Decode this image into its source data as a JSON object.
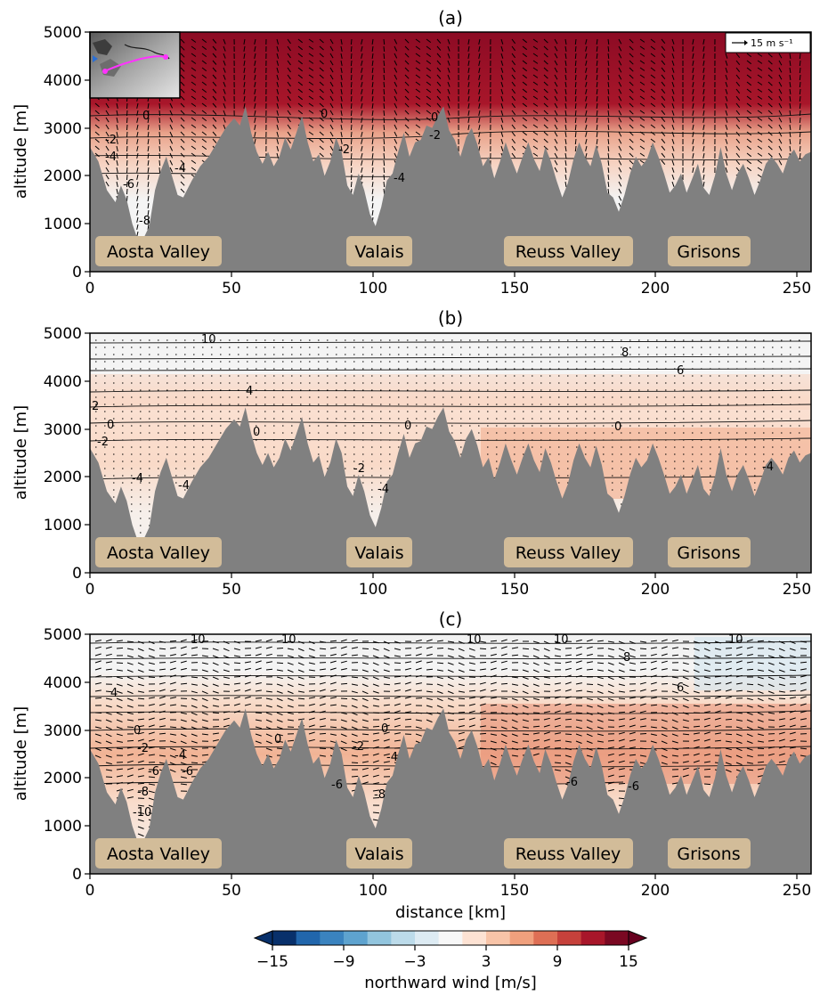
{
  "chart_data": [
    {
      "type": "heatmap",
      "panel_label": "(a)",
      "ylabel": "altitude [m]",
      "xlabel": "",
      "xlim": [
        0,
        255
      ],
      "ylim": [
        0,
        5000
      ],
      "xticks": [
        "0",
        "50",
        "100",
        "150",
        "200",
        "250"
      ],
      "yticks": [
        "0",
        "1000",
        "2000",
        "3000",
        "4000",
        "5000"
      ],
      "reference_arrow": "15 m s⁻¹",
      "region_labels": [
        "Aosta Valley",
        "Valais",
        "Reuss Valley",
        "Grisons"
      ],
      "contour_labels": [
        "0",
        "-2",
        "-4",
        "-6",
        "-8",
        "0",
        "-2",
        "-4",
        "-4",
        "0",
        "-2"
      ],
      "inset_map": true
    },
    {
      "type": "heatmap",
      "panel_label": "(b)",
      "ylabel": "altitude [m]",
      "xlabel": "",
      "xlim": [
        0,
        255
      ],
      "ylim": [
        0,
        5000
      ],
      "xticks": [
        "0",
        "50",
        "100",
        "150",
        "200",
        "250"
      ],
      "yticks": [
        "0",
        "1000",
        "2000",
        "3000",
        "4000",
        "5000"
      ],
      "region_labels": [
        "Aosta Valley",
        "Valais",
        "Reuss Valley",
        "Grisons"
      ],
      "contour_labels": [
        "10",
        "8",
        "6",
        "4",
        "2",
        "0",
        "-2",
        "-4",
        "-4",
        "0",
        "0",
        "-2",
        "-4",
        "0",
        "-4"
      ]
    },
    {
      "type": "heatmap",
      "panel_label": "(c)",
      "ylabel": "altitude [m]",
      "xlabel": "distance [km]",
      "xlim": [
        0,
        255
      ],
      "ylim": [
        0,
        5000
      ],
      "xticks": [
        "0",
        "50",
        "100",
        "150",
        "200",
        "250"
      ],
      "yticks": [
        "0",
        "1000",
        "2000",
        "3000",
        "4000",
        "5000"
      ],
      "region_labels": [
        "Aosta Valley",
        "Valais",
        "Reuss Valley",
        "Grisons"
      ],
      "contour_labels": [
        "10",
        "10",
        "10",
        "10",
        "10",
        "8",
        "6",
        "4",
        "0",
        "-2",
        "-4",
        "-6",
        "-6",
        "-8",
        "-10",
        "0",
        "-2",
        "-4",
        "-6",
        "-8",
        "0",
        "-6",
        "-6"
      ]
    }
  ],
  "terrain_profile_km_m": [
    [
      0,
      2600
    ],
    [
      3,
      2300
    ],
    [
      6,
      1700
    ],
    [
      9,
      1450
    ],
    [
      11,
      1800
    ],
    [
      13,
      1500
    ],
    [
      15,
      1000
    ],
    [
      17,
      650
    ],
    [
      19,
      700
    ],
    [
      21,
      950
    ],
    [
      23,
      1700
    ],
    [
      25,
      2100
    ],
    [
      27,
      2400
    ],
    [
      29,
      2000
    ],
    [
      31,
      1600
    ],
    [
      33,
      1550
    ],
    [
      36,
      1900
    ],
    [
      39,
      2200
    ],
    [
      42,
      2400
    ],
    [
      45,
      2700
    ],
    [
      48,
      3000
    ],
    [
      51,
      3200
    ],
    [
      53,
      3050
    ],
    [
      55,
      3450
    ],
    [
      57,
      2900
    ],
    [
      59,
      2500
    ],
    [
      61,
      2250
    ],
    [
      63,
      2500
    ],
    [
      65,
      2200
    ],
    [
      67,
      2400
    ],
    [
      69,
      2800
    ],
    [
      71,
      2550
    ],
    [
      73,
      2900
    ],
    [
      75,
      3250
    ],
    [
      77,
      2700
    ],
    [
      79,
      2300
    ],
    [
      81,
      2450
    ],
    [
      83,
      2000
    ],
    [
      85,
      2300
    ],
    [
      87,
      2800
    ],
    [
      89,
      2500
    ],
    [
      91,
      1800
    ],
    [
      93,
      1600
    ],
    [
      95,
      2050
    ],
    [
      97,
      1700
    ],
    [
      99,
      1200
    ],
    [
      101,
      950
    ],
    [
      103,
      1350
    ],
    [
      105,
      1900
    ],
    [
      107,
      2050
    ],
    [
      109,
      2500
    ],
    [
      111,
      2900
    ],
    [
      113,
      2400
    ],
    [
      115,
      2700
    ],
    [
      117,
      2750
    ],
    [
      119,
      3050
    ],
    [
      121,
      3000
    ],
    [
      123,
      3250
    ],
    [
      125,
      3450
    ],
    [
      127,
      2950
    ],
    [
      129,
      2750
    ],
    [
      131,
      2400
    ],
    [
      133,
      2800
    ],
    [
      135,
      3000
    ],
    [
      137,
      2650
    ],
    [
      139,
      2200
    ],
    [
      141,
      2400
    ],
    [
      143,
      1950
    ],
    [
      145,
      2300
    ],
    [
      147,
      2700
    ],
    [
      149,
      2350
    ],
    [
      151,
      2050
    ],
    [
      153,
      2400
    ],
    [
      155,
      2700
    ],
    [
      157,
      2350
    ],
    [
      159,
      2100
    ],
    [
      161,
      2600
    ],
    [
      163,
      2300
    ],
    [
      165,
      1900
    ],
    [
      167,
      1550
    ],
    [
      169,
      1850
    ],
    [
      171,
      2350
    ],
    [
      173,
      2700
    ],
    [
      175,
      2400
    ],
    [
      177,
      2200
    ],
    [
      179,
      2650
    ],
    [
      181,
      2250
    ],
    [
      183,
      1650
    ],
    [
      185,
      1550
    ],
    [
      187,
      1250
    ],
    [
      189,
      1600
    ],
    [
      191,
      2050
    ],
    [
      193,
      2400
    ],
    [
      195,
      2200
    ],
    [
      197,
      2350
    ],
    [
      199,
      2700
    ],
    [
      201,
      2400
    ],
    [
      203,
      2050
    ],
    [
      205,
      1650
    ],
    [
      207,
      1800
    ],
    [
      209,
      2050
    ],
    [
      211,
      1650
    ],
    [
      213,
      1950
    ],
    [
      215,
      2250
    ],
    [
      217,
      1750
    ],
    [
      219,
      1600
    ],
    [
      221,
      2000
    ],
    [
      223,
      2600
    ],
    [
      225,
      2050
    ],
    [
      227,
      1700
    ],
    [
      229,
      2050
    ],
    [
      231,
      2250
    ],
    [
      233,
      1950
    ],
    [
      235,
      1600
    ],
    [
      237,
      1900
    ],
    [
      239,
      2250
    ],
    [
      241,
      2400
    ],
    [
      243,
      2250
    ],
    [
      245,
      2050
    ],
    [
      247,
      2400
    ],
    [
      249,
      2550
    ],
    [
      251,
      2300
    ],
    [
      253,
      2450
    ],
    [
      255,
      2500
    ]
  ],
  "colorbar": {
    "label": "northward wind [m/s]",
    "ticks": [
      "−15",
      "−9",
      "−3",
      "3",
      "9",
      "15"
    ],
    "levels": [
      -15,
      -13,
      -11,
      -9,
      -7,
      -5,
      -3,
      -1,
      1,
      3,
      5,
      7,
      9,
      11,
      13,
      15
    ],
    "colors": [
      "#08306b",
      "#2166ac",
      "#3a83bf",
      "#5ea3cf",
      "#92c5de",
      "#bcdbea",
      "#ddebf3",
      "#f7f7f7",
      "#fde2d3",
      "#f8c4a8",
      "#f0a07d",
      "#de6f55",
      "#c6413b",
      "#a8162a",
      "#7a0822"
    ],
    "extend": "both"
  }
}
